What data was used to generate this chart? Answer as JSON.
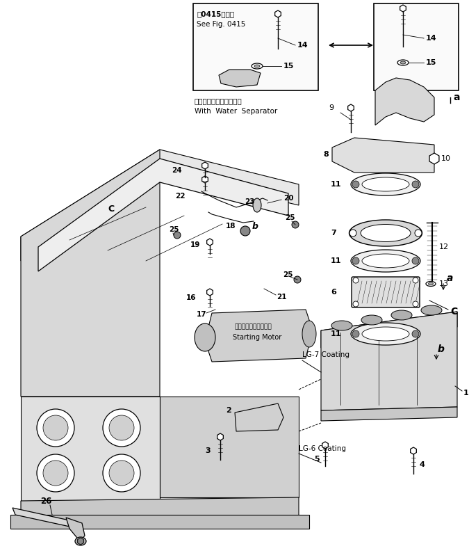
{
  "bg_color": "#ffffff",
  "line_color": "#000000",
  "fig_width": 6.75,
  "fig_height": 8.05,
  "dpi": 100,
  "inset_text1": "第0415図参照",
  "inset_text2": "See Fig. 0415",
  "inset_subtext1": "ウォータセパレータ付き",
  "inset_subtext2": "With  Water  Separator",
  "starting_motor_ja": "スターティングモータ",
  "starting_motor_en": "Starting Motor",
  "lg7_text": "LG-7 Coating",
  "lg6_text": "LG-6 Coating"
}
